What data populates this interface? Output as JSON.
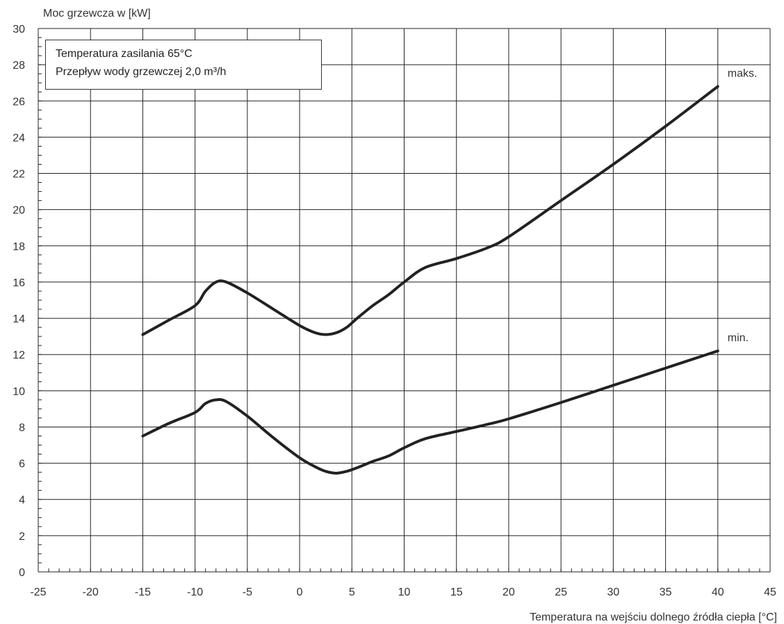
{
  "chart_data": {
    "type": "line",
    "ylabel": "Moc grzewcza w [kW]",
    "xlabel": "Temperatura na wejściu dolnego źródła ciepła [°C]",
    "annotations": [
      "Temperatura zasilania 65°C",
      "Przepływ wody grzewczej 2,0 m³/h"
    ],
    "xlim": [
      -25,
      45
    ],
    "ylim": [
      0,
      30
    ],
    "x_ticks": [
      -25,
      -20,
      -15,
      -10,
      -5,
      0,
      5,
      10,
      15,
      20,
      25,
      30,
      35,
      40,
      45
    ],
    "y_ticks": [
      0,
      2,
      4,
      6,
      8,
      10,
      12,
      14,
      16,
      18,
      20,
      22,
      24,
      26,
      28,
      30
    ],
    "grid": true,
    "series": [
      {
        "name": "maks.",
        "x": [
          -15,
          -12.5,
          -10,
          -9,
          -8,
          -7,
          -5,
          -2.5,
          0,
          1.5,
          2.5,
          3.5,
          4.5,
          5.5,
          7,
          8.5,
          10,
          12,
          15,
          18,
          20,
          25,
          30,
          35,
          40
        ],
        "y": [
          13.1,
          13.9,
          14.7,
          15.5,
          16.0,
          16.0,
          15.4,
          14.5,
          13.6,
          13.2,
          13.1,
          13.2,
          13.5,
          14.0,
          14.7,
          15.3,
          16.0,
          16.8,
          17.3,
          17.9,
          18.5,
          20.5,
          22.5,
          24.6,
          26.8
        ]
      },
      {
        "name": "min.",
        "x": [
          -15,
          -12.5,
          -10,
          -9,
          -8,
          -7,
          -5,
          -2.5,
          0,
          1.5,
          2.5,
          3.5,
          4.5,
          5.5,
          7,
          8.5,
          10,
          12,
          15,
          18,
          20,
          25,
          30,
          35,
          40
        ],
        "y": [
          7.5,
          8.2,
          8.8,
          9.3,
          9.5,
          9.4,
          8.6,
          7.4,
          6.3,
          5.8,
          5.55,
          5.45,
          5.55,
          5.75,
          6.1,
          6.4,
          6.85,
          7.35,
          7.75,
          8.15,
          8.45,
          9.35,
          10.3,
          11.25,
          12.2
        ]
      }
    ]
  }
}
